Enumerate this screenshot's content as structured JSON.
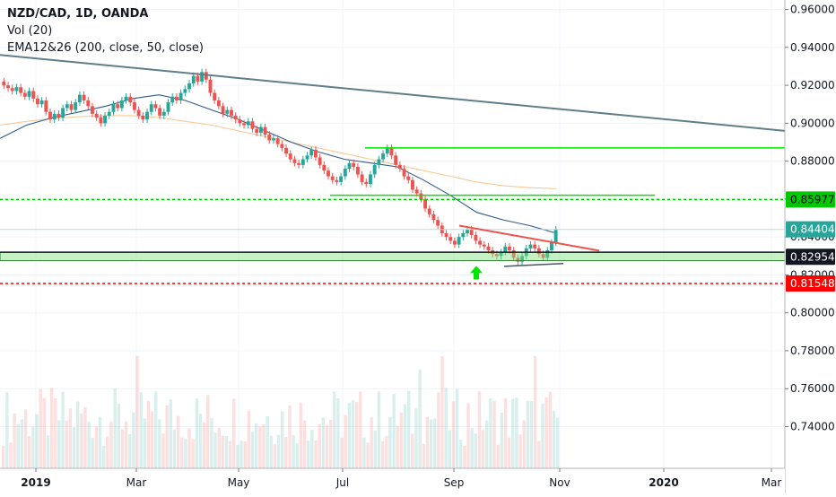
{
  "legend": {
    "symbol": "NZD/CAD, 1D, OANDA",
    "volume": "Vol (20)",
    "ema": "EMA12&26 (200, close, 50, close)"
  },
  "chart_data": {
    "type": "candlestick",
    "symbol": "NZD/CAD",
    "interval": "1D",
    "source": "OANDA",
    "ylim": [
      0.718,
      0.965
    ],
    "y_ticks": [
      "0.96000",
      "0.94000",
      "0.92000",
      "0.90000",
      "0.88000",
      "0.86000",
      "0.84000",
      "0.82000",
      "0.80000",
      "0.78000",
      "0.76000",
      "0.74000"
    ],
    "x_ticks": [
      "2019",
      "Mar",
      "May",
      "Jul",
      "Sep",
      "Nov",
      "2020",
      "Mar"
    ],
    "x_tick_bold": [
      true,
      false,
      false,
      false,
      false,
      false,
      true,
      false
    ],
    "price_labels": [
      {
        "text": "0.85977",
        "value": 0.85977,
        "color": "#00c800",
        "text_color": "#000000"
      },
      {
        "text": "0.84404",
        "value": 0.84404,
        "color": "#26a69a",
        "text_color": "#ffffff"
      },
      {
        "text": "0.82954",
        "value": 0.82954,
        "color": "#131722",
        "text_color": "#ffffff"
      },
      {
        "text": "0.81548",
        "value": 0.81548,
        "color": "#ff0000",
        "text_color": "#ffffff"
      }
    ],
    "price_series_close": [
      0.92,
      0.9185,
      0.917,
      0.919,
      0.916,
      0.914,
      0.917,
      0.913,
      0.91,
      0.912,
      0.906,
      0.902,
      0.905,
      0.903,
      0.908,
      0.91,
      0.907,
      0.911,
      0.915,
      0.912,
      0.909,
      0.905,
      0.903,
      0.9,
      0.904,
      0.906,
      0.91,
      0.908,
      0.912,
      0.914,
      0.911,
      0.907,
      0.904,
      0.902,
      0.906,
      0.91,
      0.908,
      0.904,
      0.906,
      0.911,
      0.914,
      0.912,
      0.916,
      0.918,
      0.921,
      0.925,
      0.922,
      0.927,
      0.923,
      0.916,
      0.912,
      0.909,
      0.905,
      0.907,
      0.904,
      0.902,
      0.9,
      0.899,
      0.901,
      0.897,
      0.895,
      0.898,
      0.894,
      0.891,
      0.892,
      0.889,
      0.887,
      0.884,
      0.881,
      0.879,
      0.878,
      0.881,
      0.883,
      0.886,
      0.882,
      0.878,
      0.875,
      0.872,
      0.87,
      0.869,
      0.872,
      0.876,
      0.879,
      0.877,
      0.873,
      0.869,
      0.868,
      0.873,
      0.878,
      0.881,
      0.884,
      0.887,
      0.883,
      0.878,
      0.876,
      0.872,
      0.87,
      0.865,
      0.863,
      0.86,
      0.855,
      0.852,
      0.849,
      0.846,
      0.842,
      0.84,
      0.838,
      0.836,
      0.84,
      0.842,
      0.844,
      0.841,
      0.838,
      0.836,
      0.835,
      0.833,
      0.831,
      0.83,
      0.832,
      0.835,
      0.833,
      0.829,
      0.827,
      0.83,
      0.834,
      0.836,
      0.834,
      0.831,
      0.829,
      0.833,
      0.837,
      0.844
    ],
    "ema200": [
      0.899,
      0.901,
      0.9025,
      0.9035,
      0.904,
      0.904,
      0.903,
      0.901,
      0.899,
      0.896,
      0.893,
      0.89,
      0.887,
      0.884,
      0.881,
      0.878,
      0.875,
      0.872,
      0.869,
      0.867,
      0.866,
      0.8655
    ],
    "ema50": [
      0.892,
      0.899,
      0.903,
      0.906,
      0.909,
      0.913,
      0.915,
      0.912,
      0.907,
      0.902,
      0.896,
      0.89,
      0.885,
      0.881,
      0.879,
      0.877,
      0.87,
      0.862,
      0.853,
      0.849,
      0.846,
      0.842
    ],
    "volume_scale_max": 100,
    "annotations": {
      "long_trendline": {
        "from": [
          0.936,
          "start"
        ],
        "to": [
          0.896,
          "end"
        ],
        "color": "#607d8b"
      },
      "resistance_1": {
        "value": 0.887,
        "color": "#00e600"
      },
      "resistance_2": {
        "value": 0.862,
        "color": "#00e600"
      },
      "dotted_green": {
        "value": 0.85977,
        "color": "#00c800"
      },
      "dotted_red": {
        "value": 0.81548,
        "color": "#ff0000"
      },
      "zone": {
        "top": 0.832,
        "bottom": 0.8275,
        "color": "#7ee07e"
      },
      "descending_red_line": {
        "color": "#ef5350"
      },
      "ascending_dark_line": {
        "color": "#455a64"
      },
      "arrow": {
        "color": "#00e600",
        "direction": "up"
      }
    }
  }
}
